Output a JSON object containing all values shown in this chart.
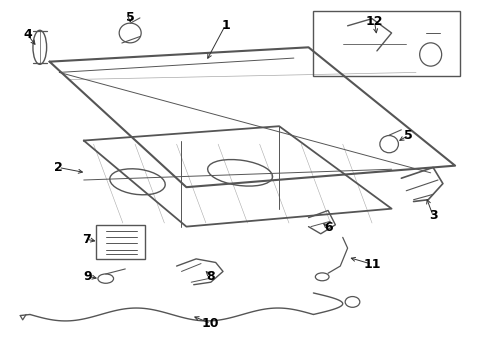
{
  "background_color": "#ffffff",
  "line_color": "#555555",
  "label_color": "#000000",
  "figsize": [
    4.9,
    3.6
  ],
  "dpi": 100
}
